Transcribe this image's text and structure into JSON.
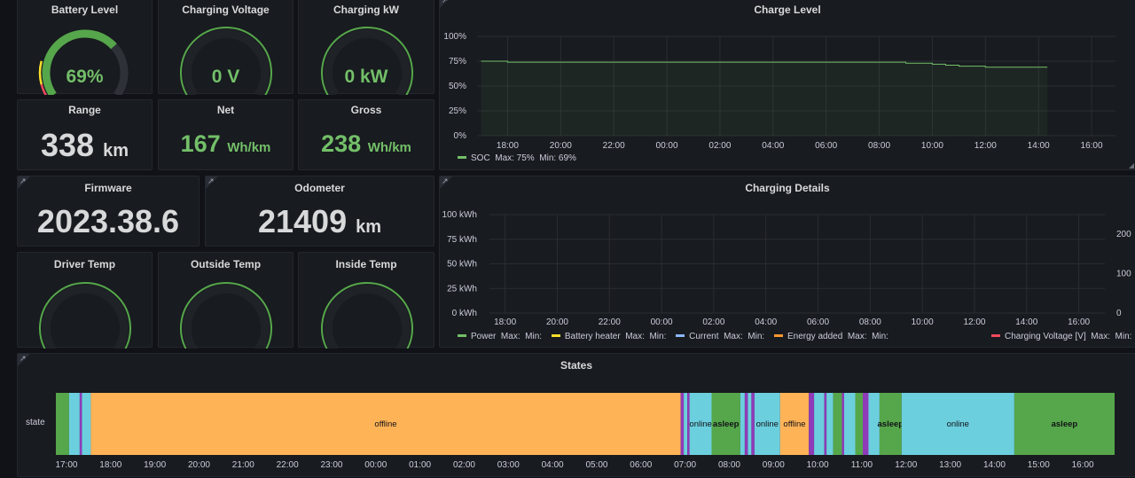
{
  "panels": {
    "battery": {
      "title": "Battery Level",
      "value": "69%",
      "fraction": 0.69
    },
    "charging_voltage": {
      "title": "Charging Voltage",
      "value": "0 V",
      "fraction": 0
    },
    "charging_kw": {
      "title": "Charging kW",
      "value": "0 kW",
      "fraction": 0
    },
    "range": {
      "title": "Range",
      "value": "338",
      "unit": "km"
    },
    "net": {
      "title": "Net",
      "value": "167",
      "unit": "Wh/km"
    },
    "gross": {
      "title": "Gross",
      "value": "238",
      "unit": "Wh/km"
    },
    "firmware": {
      "title": "Firmware",
      "value": "2023.38.6"
    },
    "odometer": {
      "title": "Odometer",
      "value": "21409",
      "unit": "km"
    },
    "driver_temp": {
      "title": "Driver Temp"
    },
    "outside_temp": {
      "title": "Outside Temp"
    },
    "inside_temp": {
      "title": "Inside Temp"
    },
    "charge_level": {
      "title": "Charge Level"
    },
    "charging_details": {
      "title": "Charging Details"
    },
    "states": {
      "title": "States",
      "row_label": "state"
    }
  },
  "colors": {
    "green": "#56a64b",
    "green_text": "#73bf69",
    "yellow": "#fade2a",
    "blue": "#8ab8ff",
    "orange": "#ff9830",
    "red": "#f2495c",
    "offline": "#ffb357",
    "online": "#6ccfde",
    "purple": "#8f3bb8"
  },
  "chart_data": [
    {
      "type": "line",
      "title": "Charge Level",
      "x": [
        "17:00",
        "18:00",
        "19:00",
        "20:00",
        "21:00",
        "22:00",
        "23:00",
        "00:00",
        "01:00",
        "02:00",
        "03:00",
        "04:00",
        "05:00",
        "06:00",
        "07:00",
        "08:00",
        "09:00",
        "10:00",
        "10:30",
        "11:00",
        "12:00",
        "13:00",
        "14:00",
        "14:20"
      ],
      "series": [
        {
          "name": "SOC",
          "values": [
            75,
            74,
            74,
            74,
            74,
            74,
            74,
            74,
            74,
            74,
            74,
            74,
            74,
            74,
            74,
            74,
            73,
            72,
            71,
            70,
            69,
            69,
            69,
            69
          ]
        }
      ],
      "ylim": [
        0,
        100
      ],
      "y_ticks": [
        "100%",
        "75%",
        "50%",
        "25%",
        "0%"
      ],
      "x_ticks": [
        "18:00",
        "20:00",
        "22:00",
        "00:00",
        "02:00",
        "04:00",
        "06:00",
        "08:00",
        "10:00",
        "12:00",
        "14:00",
        "16:00"
      ],
      "legend": {
        "name": "SOC",
        "max": "Max: 75%",
        "min": "Min: 69%"
      }
    },
    {
      "type": "line",
      "title": "Charging Details",
      "y_ticks_left": [
        "100 kWh",
        "75 kWh",
        "50 kWh",
        "25 kWh",
        "0 kWh"
      ],
      "y_ticks_right": [
        "200",
        "100",
        "0"
      ],
      "x_ticks": [
        "18:00",
        "20:00",
        "22:00",
        "00:00",
        "02:00",
        "04:00",
        "06:00",
        "08:00",
        "10:00",
        "12:00",
        "14:00",
        "16:00"
      ],
      "series": [
        {
          "name": "Power",
          "values": []
        },
        {
          "name": "Battery heater",
          "values": []
        },
        {
          "name": "Current",
          "values": []
        },
        {
          "name": "Energy added",
          "values": []
        },
        {
          "name": "Charging Voltage [V]",
          "values": []
        }
      ],
      "legend_left": [
        {
          "name": "Power",
          "max": "Max:",
          "min": "Min:",
          "color": "#73bf69"
        },
        {
          "name": "Battery heater",
          "max": "Max:",
          "min": "Min:",
          "color": "#fade2a"
        },
        {
          "name": "Current",
          "max": "Max:",
          "min": "Min:",
          "color": "#8ab8ff"
        },
        {
          "name": "Energy added",
          "max": "Max:",
          "min": "Min:",
          "color": "#ff9830"
        }
      ],
      "legend_right": {
        "name": "Charging Voltage [V]",
        "max": "Max:",
        "min": "Min:",
        "color": "#f2495c"
      }
    },
    {
      "type": "state-timeline",
      "title": "States",
      "x_ticks": [
        "17:00",
        "18:00",
        "19:00",
        "20:00",
        "21:00",
        "22:00",
        "23:00",
        "00:00",
        "01:00",
        "02:00",
        "03:00",
        "04:00",
        "05:00",
        "06:00",
        "07:00",
        "08:00",
        "09:00",
        "10:00",
        "11:00",
        "12:00",
        "13:00",
        "14:00",
        "15:00",
        "16:00"
      ],
      "segments": [
        {
          "start": 16.76,
          "end": 17.06,
          "state": "asleep",
          "label": ""
        },
        {
          "start": 17.06,
          "end": 17.3,
          "state": "online",
          "label": ""
        },
        {
          "start": 17.3,
          "end": 17.35,
          "state": "purple",
          "label": ""
        },
        {
          "start": 17.35,
          "end": 17.55,
          "state": "online",
          "label": ""
        },
        {
          "start": 17.55,
          "end": 30.9,
          "state": "offline",
          "label": "offline"
        },
        {
          "start": 30.9,
          "end": 30.97,
          "state": "purple",
          "label": ""
        },
        {
          "start": 30.97,
          "end": 31.05,
          "state": "online",
          "label": ""
        },
        {
          "start": 31.05,
          "end": 31.1,
          "state": "purple",
          "label": ""
        },
        {
          "start": 31.1,
          "end": 31.6,
          "state": "online",
          "label": "online"
        },
        {
          "start": 31.6,
          "end": 32.25,
          "state": "asleep",
          "label": "asleep"
        },
        {
          "start": 32.25,
          "end": 32.35,
          "state": "online",
          "label": ""
        },
        {
          "start": 32.35,
          "end": 32.42,
          "state": "purple",
          "label": ""
        },
        {
          "start": 32.42,
          "end": 32.5,
          "state": "online",
          "label": ""
        },
        {
          "start": 32.5,
          "end": 32.57,
          "state": "purple",
          "label": ""
        },
        {
          "start": 32.57,
          "end": 33.15,
          "state": "online",
          "label": "online"
        },
        {
          "start": 33.15,
          "end": 33.8,
          "state": "offline",
          "label": "offline"
        },
        {
          "start": 33.8,
          "end": 33.92,
          "state": "purple",
          "label": ""
        },
        {
          "start": 33.92,
          "end": 34.15,
          "state": "online",
          "label": ""
        },
        {
          "start": 34.15,
          "end": 34.2,
          "state": "purple",
          "label": ""
        },
        {
          "start": 34.2,
          "end": 34.35,
          "state": "online",
          "label": ""
        },
        {
          "start": 34.35,
          "end": 34.55,
          "state": "asleep",
          "label": ""
        },
        {
          "start": 34.55,
          "end": 34.6,
          "state": "purple",
          "label": ""
        },
        {
          "start": 34.6,
          "end": 34.85,
          "state": "online",
          "label": ""
        },
        {
          "start": 34.85,
          "end": 35.02,
          "state": "asleep",
          "label": ""
        },
        {
          "start": 35.02,
          "end": 35.15,
          "state": "purple",
          "label": ""
        },
        {
          "start": 35.15,
          "end": 35.4,
          "state": "online",
          "label": ""
        },
        {
          "start": 35.4,
          "end": 35.9,
          "state": "asleep",
          "label": "asleep"
        },
        {
          "start": 35.9,
          "end": 38.45,
          "state": "online",
          "label": "online"
        },
        {
          "start": 38.45,
          "end": 40.72,
          "state": "asleep",
          "label": "asleep"
        }
      ]
    }
  ]
}
